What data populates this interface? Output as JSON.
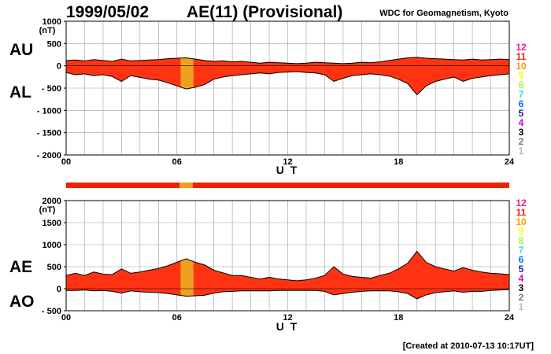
{
  "header": {
    "date": "1999/05/02",
    "title": "AE(11) (Provisional)",
    "source": "WDC for Geomagnetism, Kyoto"
  },
  "footer": {
    "created": "[Created at 2010-07-13 10:17UT]"
  },
  "color_scale": {
    "labels": [
      "12",
      "11",
      "10",
      "9",
      "8",
      "7",
      "6",
      "5",
      "4",
      "3",
      "2",
      "1"
    ],
    "colors": [
      "#ff1493",
      "#e8210f",
      "#ff9900",
      "#ffff00",
      "#99ff33",
      "#33dddd",
      "#0077ff",
      "#1a1aaa",
      "#cc00cc",
      "#000000",
      "#777777",
      "#bbbbbb"
    ]
  },
  "chart_data": [
    {
      "type": "area",
      "name": "AU/AL",
      "side_labels": {
        "upper": "AU",
        "lower": "AL"
      },
      "unit": "(nT)",
      "xlabel": "U T",
      "xlim": [
        0,
        24
      ],
      "ylim": [
        -2000,
        1000
      ],
      "yticks": [
        1000,
        500,
        0,
        -500,
        -1000,
        -1500,
        -2000
      ],
      "ytick_labels": [
        "1000",
        "500",
        "0",
        "- 500",
        "- 1000",
        "- 1500",
        "- 2000"
      ],
      "xticks": [
        0,
        6,
        12,
        18,
        24
      ],
      "xtick_labels": [
        "00",
        "06",
        "12",
        "18",
        "24"
      ],
      "grid": true,
      "fill_color": "#ff3311",
      "series": [
        {
          "name": "AU",
          "x": [
            0,
            0.5,
            1,
            1.5,
            2,
            2.5,
            3,
            3.5,
            4,
            4.5,
            5,
            5.5,
            6,
            6.5,
            7,
            7.5,
            8,
            8.5,
            9,
            9.5,
            10,
            10.5,
            11,
            11.5,
            12,
            12.5,
            13,
            13.5,
            14,
            14.5,
            15,
            15.5,
            16,
            16.5,
            17,
            17.5,
            18,
            18.5,
            19,
            19.5,
            20,
            20.5,
            21,
            21.5,
            22,
            22.5,
            23,
            23.5,
            24
          ],
          "values": [
            120,
            130,
            110,
            140,
            120,
            100,
            150,
            110,
            120,
            130,
            140,
            160,
            170,
            180,
            150,
            120,
            100,
            110,
            90,
            100,
            80,
            60,
            80,
            70,
            60,
            50,
            60,
            80,
            70,
            60,
            50,
            60,
            80,
            70,
            90,
            120,
            150,
            180,
            190,
            170,
            160,
            150,
            140,
            130,
            150,
            130,
            140,
            150,
            140
          ]
        },
        {
          "name": "AL",
          "x": [
            0,
            0.5,
            1,
            1.5,
            2,
            2.5,
            3,
            3.5,
            4,
            4.5,
            5,
            5.5,
            6,
            6.5,
            7,
            7.5,
            8,
            8.5,
            9,
            9.5,
            10,
            10.5,
            11,
            11.5,
            12,
            12.5,
            13,
            13.5,
            14,
            14.5,
            15,
            15.5,
            16,
            16.5,
            17,
            17.5,
            18,
            18.5,
            19,
            19.5,
            20,
            20.5,
            21,
            21.5,
            22,
            22.5,
            23,
            23.5,
            24
          ],
          "values": [
            -150,
            -200,
            -180,
            -220,
            -200,
            -240,
            -350,
            -220,
            -260,
            -300,
            -320,
            -380,
            -450,
            -520,
            -480,
            -420,
            -300,
            -250,
            -220,
            -200,
            -180,
            -160,
            -180,
            -150,
            -140,
            -130,
            -150,
            -160,
            -200,
            -350,
            -280,
            -220,
            -200,
            -180,
            -200,
            -230,
            -300,
            -400,
            -650,
            -450,
            -350,
            -300,
            -250,
            -350,
            -280,
            -250,
            -220,
            -200,
            -180
          ]
        }
      ]
    },
    {
      "type": "area",
      "name": "AE/AO",
      "side_labels": {
        "upper": "AE",
        "lower": "AO"
      },
      "unit": "(nT)",
      "xlabel": "U T",
      "xlim": [
        0,
        24
      ],
      "ylim": [
        -500,
        2000
      ],
      "yticks": [
        2000,
        1500,
        1000,
        500,
        0,
        -500
      ],
      "ytick_labels": [
        "2000",
        "1500",
        "1000",
        "500",
        "0",
        "- 500"
      ],
      "xticks": [
        0,
        6,
        12,
        18,
        24
      ],
      "xtick_labels": [
        "00",
        "06",
        "12",
        "18",
        "24"
      ],
      "grid": true,
      "fill_color": "#ff3311",
      "series": [
        {
          "name": "AE",
          "x": [
            0,
            0.5,
            1,
            1.5,
            2,
            2.5,
            3,
            3.5,
            4,
            4.5,
            5,
            5.5,
            6,
            6.5,
            7,
            7.5,
            8,
            8.5,
            9,
            9.5,
            10,
            10.5,
            11,
            11.5,
            12,
            12.5,
            13,
            13.5,
            14,
            14.5,
            15,
            15.5,
            16,
            16.5,
            17,
            17.5,
            18,
            18.5,
            19,
            19.5,
            20,
            20.5,
            21,
            21.5,
            22,
            22.5,
            23,
            23.5,
            24
          ],
          "values": [
            300,
            350,
            300,
            380,
            330,
            320,
            450,
            350,
            380,
            420,
            460,
            520,
            600,
            680,
            600,
            540,
            420,
            360,
            300,
            300,
            260,
            220,
            260,
            220,
            200,
            180,
            200,
            240,
            300,
            500,
            330,
            280,
            260,
            240,
            300,
            350,
            450,
            580,
            850,
            600,
            500,
            450,
            400,
            480,
            420,
            380,
            350,
            340,
            320
          ]
        },
        {
          "name": "AO",
          "x": [
            0,
            0.5,
            1,
            1.5,
            2,
            2.5,
            3,
            3.5,
            4,
            4.5,
            5,
            5.5,
            6,
            6.5,
            7,
            7.5,
            8,
            8.5,
            9,
            9.5,
            10,
            10.5,
            11,
            11.5,
            12,
            12.5,
            13,
            13.5,
            14,
            14.5,
            15,
            15.5,
            16,
            16.5,
            17,
            17.5,
            18,
            18.5,
            19,
            19.5,
            20,
            20.5,
            21,
            21.5,
            22,
            22.5,
            23,
            23.5,
            24
          ],
          "values": [
            -40,
            -40,
            -30,
            -50,
            -40,
            -60,
            -100,
            -50,
            -70,
            -80,
            -90,
            -110,
            -140,
            -170,
            -160,
            -150,
            -100,
            -70,
            -60,
            -50,
            -50,
            -50,
            -50,
            -40,
            -40,
            -40,
            -40,
            -40,
            -60,
            -140,
            -110,
            -80,
            -60,
            -50,
            -50,
            -50,
            -70,
            -110,
            -230,
            -140,
            -90,
            -70,
            -50,
            -80,
            -60,
            -60,
            -40,
            -30,
            -20
          ]
        }
      ]
    }
  ]
}
